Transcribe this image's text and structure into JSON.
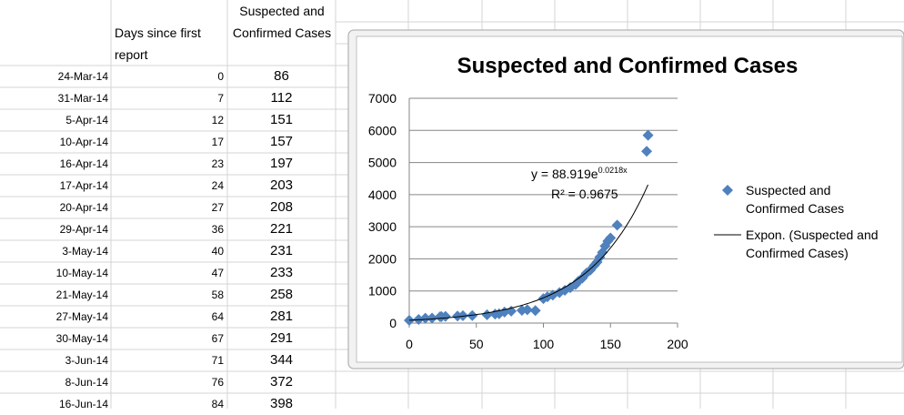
{
  "sheet": {
    "headers": [
      "Days since first report",
      "Suspected and Confirmed Cases"
    ],
    "rows": [
      [
        "24-Mar-14",
        0,
        86
      ],
      [
        "31-Mar-14",
        7,
        112
      ],
      [
        "5-Apr-14",
        12,
        151
      ],
      [
        "10-Apr-14",
        17,
        157
      ],
      [
        "16-Apr-14",
        23,
        197
      ],
      [
        "17-Apr-14",
        24,
        203
      ],
      [
        "20-Apr-14",
        27,
        208
      ],
      [
        "29-Apr-14",
        36,
        221
      ],
      [
        "3-May-14",
        40,
        231
      ],
      [
        "10-May-14",
        47,
        233
      ],
      [
        "21-May-14",
        58,
        258
      ],
      [
        "27-May-14",
        64,
        281
      ],
      [
        "30-May-14",
        67,
        291
      ],
      [
        "3-Jun-14",
        71,
        344
      ],
      [
        "8-Jun-14",
        76,
        372
      ],
      [
        "16-Jun-14",
        84,
        398
      ]
    ]
  },
  "chart_data": {
    "type": "scatter",
    "title": "Suspected and Confirmed Cases",
    "x": [
      0,
      7,
      12,
      17,
      23,
      24,
      27,
      36,
      40,
      47,
      58,
      64,
      67,
      71,
      76,
      84,
      88,
      94,
      100,
      103,
      107,
      112,
      116,
      120,
      124,
      126,
      129,
      132,
      135,
      138,
      140,
      142,
      144,
      146,
      148,
      150,
      155,
      177,
      178
    ],
    "series": [
      {
        "name": "Suspected and Confirmed Cases",
        "color": "#4f81bd",
        "values": [
          86,
          112,
          151,
          157,
          197,
          203,
          208,
          221,
          231,
          233,
          258,
          281,
          291,
          344,
          372,
          398,
          413,
          390,
          760,
          820,
          870,
          950,
          1020,
          1100,
          1200,
          1300,
          1400,
          1550,
          1650,
          1800,
          1900,
          2050,
          2200,
          2400,
          2550,
          2650,
          3050,
          5350,
          5850
        ]
      }
    ],
    "xlim": [
      0,
      200
    ],
    "xticks": [
      0,
      50,
      100,
      150,
      200
    ],
    "ylim": [
      0,
      7000
    ],
    "yticks": [
      0,
      1000,
      2000,
      3000,
      4000,
      5000,
      6000,
      7000
    ],
    "grid": true,
    "legend": "right",
    "trendline": {
      "name": "Expon. (Suspected and Confirmed Cases)",
      "coefficient": 88.919,
      "exponent": 0.0218,
      "equation": "y = 88.919e",
      "equation_power": "0.0218x",
      "r_squared_label": "R² = 0.9675",
      "color": "#000000"
    }
  }
}
